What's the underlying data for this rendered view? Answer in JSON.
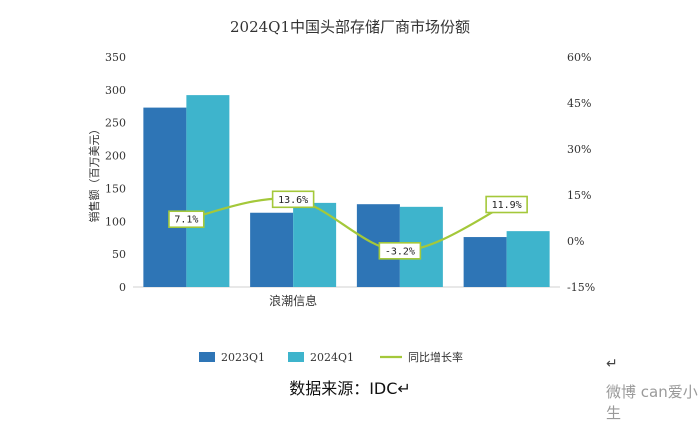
{
  "chart_data": {
    "type": "bar",
    "title": "2024Q1中国头部存储厂商市场份额",
    "categories": [
      "",
      "浪潮信息",
      "",
      ""
    ],
    "xlabel": "",
    "ylabel": "销售额（百万美元）",
    "ylim": [
      0,
      350
    ],
    "yticks": [
      "350",
      "300",
      "250",
      "200",
      "150",
      "100",
      "50",
      "0"
    ],
    "y2lim": [
      -15,
      60
    ],
    "y2ticks": [
      "60%",
      "45%",
      "30%",
      "15%",
      "0%",
      "-15%"
    ],
    "series": [
      {
        "name": "2023Q1",
        "type": "bar",
        "values": [
          273,
          113,
          126,
          76
        ]
      },
      {
        "name": "2024Q1",
        "type": "bar",
        "values": [
          292,
          128,
          122,
          85
        ]
      },
      {
        "name": "同比增长率",
        "type": "line",
        "axis": "right",
        "values": [
          7.1,
          13.6,
          -3.2,
          11.9
        ],
        "labels": [
          "7.1%",
          "13.6%",
          "-3.2%",
          "11.9%"
        ]
      }
    ],
    "colors": {
      "2023Q1": "#2e75b6",
      "2024Q1": "#3eb4cc",
      "line": "#a4c83a"
    }
  },
  "footer": {
    "source": "数据来源：IDC↵",
    "return_mark": "↵",
    "watermark": "微博 can爱小生"
  }
}
